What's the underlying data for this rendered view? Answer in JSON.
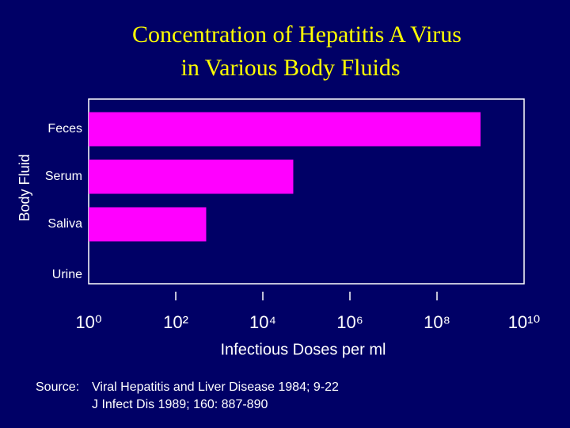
{
  "chart_data": {
    "type": "bar",
    "orientation": "horizontal",
    "title": [
      "Concentration of Hepatitis A Virus",
      "in Various Body Fluids"
    ],
    "x_label": "Infectious Doses per ml",
    "y_label": "Body Fluid",
    "categories": [
      "Feces",
      "Serum",
      "Saliva",
      "Urine"
    ],
    "values": [
      1000000000,
      50000,
      500,
      null
    ],
    "color": "#ff00ff",
    "log_scale": true,
    "xlim": [
      1,
      10000000000
    ],
    "xticks": [
      {
        "value": 1,
        "label": "10⁰"
      },
      {
        "value": 100,
        "label": "10²"
      },
      {
        "value": 10000,
        "label": "10⁴"
      },
      {
        "value": 1000000,
        "label": "10⁶"
      },
      {
        "value": 100000000,
        "label": "10⁸"
      },
      {
        "value": 10000000000,
        "label": "10¹⁰"
      }
    ],
    "source_label": "Source:",
    "sources": [
      "Viral Hepatitis and Liver Disease 1984; 9-22",
      "J Infect Dis 1989; 160: 887-890"
    ]
  }
}
